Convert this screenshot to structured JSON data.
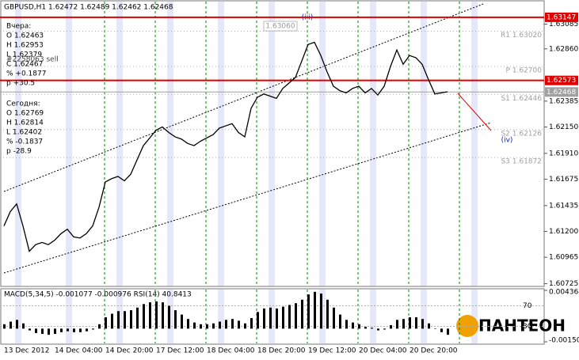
{
  "chart_data": {
    "type": "line",
    "title": "GBPUSD,H1  1.62472 1.62489 1.62462 1.62468",
    "categories": [
      "13 Dec 2012",
      null,
      null,
      null,
      null,
      null,
      null,
      null,
      "14 Dec 04:00",
      null,
      null,
      null,
      null,
      null,
      null,
      null,
      "14 Dec 20:00",
      null,
      null,
      null,
      null,
      null,
      null,
      null,
      "17 Dec 12:00",
      null,
      null,
      null,
      null,
      null,
      null,
      null,
      "18 Dec 04:00",
      null,
      null,
      null,
      null,
      null,
      null,
      null,
      "18 Dec 20:00",
      null,
      null,
      null,
      null,
      null,
      null,
      null,
      "19 Dec 12:00",
      null,
      null,
      null,
      null,
      null,
      null,
      null,
      "20 Dec 04:00",
      null,
      null,
      null,
      null,
      null,
      null,
      null,
      "20 Dec 20:00",
      null,
      null,
      null,
      null,
      null,
      null,
      null,
      null,
      null,
      null,
      null,
      null,
      null,
      null,
      null
    ],
    "series": [
      {
        "name": "GBPUSD",
        "color": "#000000",
        "values": [
          1.6125,
          1.6138,
          1.6145,
          1.6125,
          1.6102,
          1.6108,
          1.611,
          1.6108,
          1.6112,
          1.6118,
          1.6122,
          1.6115,
          1.6114,
          1.6118,
          1.6125,
          1.6142,
          1.6165,
          1.6168,
          1.617,
          1.6166,
          1.6172,
          1.6185,
          1.6198,
          1.6205,
          1.6212,
          1.6215,
          1.621,
          1.6206,
          1.6204,
          1.62,
          1.6198,
          1.6202,
          1.6205,
          1.6208,
          1.6214,
          1.6216,
          1.6218,
          1.621,
          1.6206,
          1.6232,
          1.6242,
          1.6245,
          1.6243,
          1.6241,
          1.625,
          1.6255,
          1.626,
          1.6275,
          1.629,
          1.6292,
          1.628,
          1.6265,
          1.6252,
          1.6248,
          1.6246,
          1.625,
          1.6252,
          1.6246,
          1.625,
          1.6244,
          1.6252,
          1.627,
          1.6285,
          1.6272,
          1.628,
          1.6278,
          1.6272,
          1.6258,
          1.6245,
          1.6246,
          1.6247,
          null,
          null,
          null,
          null,
          null,
          null,
          null,
          null,
          null
        ]
      }
    ],
    "ylim": [
      1.607,
      1.6329
    ],
    "yticks": [
      {
        "value": 1.63085,
        "label": "1.63085"
      },
      {
        "value": 1.6286,
        "label": "1.62860"
      },
      {
        "value": 1.62385,
        "label": "1.62385"
      },
      {
        "value": 1.6215,
        "label": "1.62150"
      },
      {
        "value": 1.6191,
        "label": "1.61910"
      },
      {
        "value": 1.61675,
        "label": "1.61675"
      },
      {
        "value": 1.61435,
        "label": "1.61435"
      },
      {
        "value": 1.612,
        "label": "1.61200"
      },
      {
        "value": 1.60965,
        "label": "1.60965"
      },
      {
        "value": 1.60725,
        "label": "1.60725"
      }
    ],
    "levels": [
      {
        "value": 1.63147,
        "color": "#e00000"
      },
      {
        "value": 1.62573,
        "color": "#e00000"
      },
      {
        "value": 1.62468,
        "color": "#a0a0a0"
      }
    ],
    "pivots": [
      {
        "label": "R1 1.63020",
        "value": 1.6302
      },
      {
        "label": "P 1.62700",
        "value": 1.627
      },
      {
        "label": "S1 1.62446",
        "value": 1.62446
      },
      {
        "label": "S2 1.62126",
        "value": 1.62126
      },
      {
        "label": "S3 1.61872",
        "value": 1.61872
      }
    ],
    "annotations": [
      "(iii)",
      "(iv)",
      "1.63060",
      "#2258063 sell"
    ],
    "info": [
      "Вчера:",
      "O 1.62463",
      "H 1.62953",
      "L 1.62379",
      "C 1.62467",
      "% +0.1877",
      "p +30.5",
      "Сегодня:",
      "O 1.62769",
      "H 1.62814",
      "L 1.62402",
      "% -0.1837",
      "p -28.9"
    ],
    "indicator": {
      "title": "MACD(5,34,5) -0.001077 -0.000976  RSI(14) 40.8413",
      "color": "#000000",
      "values": [
        0.0005,
        0.0008,
        0.001,
        0.0006,
        -0.0002,
        -0.0005,
        -0.0006,
        -0.0007,
        -0.0006,
        -0.0004,
        -0.0003,
        -0.0004,
        -0.0004,
        -0.0003,
        -0.0001,
        0.0005,
        0.0013,
        0.0017,
        0.002,
        0.002,
        0.0021,
        0.0024,
        0.0028,
        0.003,
        0.0031,
        0.003,
        0.0026,
        0.0021,
        0.0016,
        0.0011,
        0.0007,
        0.0005,
        0.0005,
        0.0006,
        0.0008,
        0.001,
        0.0011,
        0.0009,
        0.0006,
        0.0012,
        0.0019,
        0.0023,
        0.0024,
        0.0023,
        0.0025,
        0.0027,
        0.0029,
        0.0033,
        0.0039,
        0.0042,
        0.004,
        0.0033,
        0.0024,
        0.0016,
        0.001,
        0.0007,
        0.0005,
        0.0002,
        0.0001,
        -0.0002,
        -0.0001,
        0.0004,
        0.001,
        0.0011,
        0.0013,
        0.0013,
        0.0011,
        0.0006,
        0,
        -0.0004,
        -0.0007,
        null,
        null,
        null,
        null,
        null,
        null,
        null,
        null,
        null
      ],
      "ylim": [
        -0.001501,
        0.004364
      ],
      "yticks": [
        0.004364,
        -0.001501
      ],
      "y2lim": [
        0,
        100
      ],
      "y2ticks": [
        70,
        30
      ]
    },
    "logo": "ПAНТЕОН",
    "grid": true
  }
}
